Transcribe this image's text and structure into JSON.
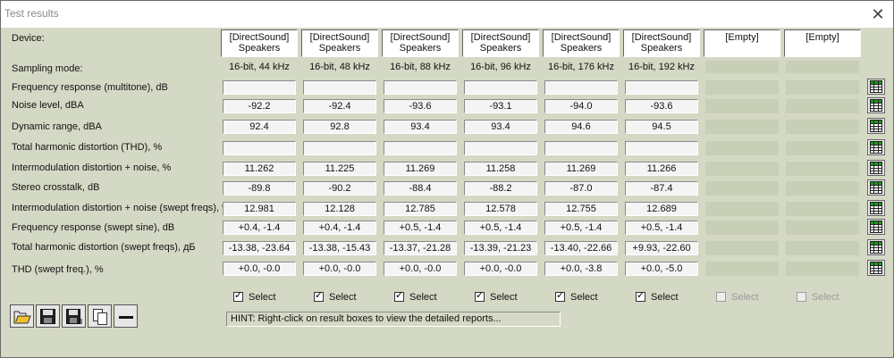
{
  "window": {
    "title": "Test results",
    "close_symbol": "✕"
  },
  "devices": [
    "[DirectSound]\nSpeakers",
    "[DirectSound]\nSpeakers",
    "[DirectSound]\nSpeakers",
    "[DirectSound]\nSpeakers",
    "[DirectSound]\nSpeakers",
    "[DirectSound]\nSpeakers",
    "[Empty]",
    "[Empty]"
  ],
  "labels": {
    "device": "Device:",
    "sampling": "Sampling mode:"
  },
  "sampling_modes": [
    "16-bit, 44 kHz",
    "16-bit, 48 kHz",
    "16-bit, 88 kHz",
    "16-bit, 96 kHz",
    "16-bit, 176 kHz",
    "16-bit, 192 kHz",
    "",
    ""
  ],
  "rows": [
    {
      "label": "Frequency response (multitone), dB",
      "values": [
        "",
        "",
        "",
        "",
        "",
        "",
        "",
        ""
      ]
    },
    {
      "label": "Noise level, dBA",
      "values": [
        "-92.2",
        "-92.4",
        "-93.6",
        "-93.1",
        "-94.0",
        "-93.6",
        "",
        ""
      ]
    },
    {
      "label": "Dynamic range, dBA",
      "values": [
        "92.4",
        "92.8",
        "93.4",
        "93.4",
        "94.6",
        "94.5",
        "",
        ""
      ]
    },
    {
      "label": "Total harmonic distortion (THD), %",
      "values": [
        "",
        "",
        "",
        "",
        "",
        "",
        "",
        ""
      ]
    },
    {
      "label": "Intermodulation distortion + noise, %",
      "values": [
        "11.262",
        "11.225",
        "11.269",
        "11.258",
        "11.269",
        "11.266",
        "",
        ""
      ]
    },
    {
      "label": "Stereo crosstalk, dB",
      "values": [
        "-89.8",
        "-90.2",
        "-88.4",
        "-88.2",
        "-87.0",
        "-87.4",
        "",
        ""
      ]
    },
    {
      "label": "Intermodulation distortion + noise (swept freqs), %",
      "values": [
        "12.981",
        "12.128",
        "12.785",
        "12.578",
        "12.755",
        "12.689",
        "",
        ""
      ]
    },
    {
      "label": "Frequency response (swept sine), dB",
      "values": [
        "+0.4, -1.4",
        "+0.4, -1.4",
        "+0.5, -1.4",
        "+0.5, -1.4",
        "+0.5, -1.4",
        "+0.5, -1.4",
        "",
        ""
      ]
    },
    {
      "label": "Total harmonic distortion (swept freqs), дБ",
      "values": [
        "-13.38, -23.64",
        "-13.38, -15.43",
        "-13.37, -21.28",
        "-13.39, -21.23",
        "-13.40, -22.66",
        "+9.93, -22.60",
        "",
        ""
      ]
    },
    {
      "label": "THD (swept freq.), %",
      "values": [
        "+0.0, -0.0",
        "+0.0, -0.0",
        "+0.0, -0.0",
        "+0.0, -0.0",
        "+0.0, -3.8",
        "+0.0, -5.0",
        "",
        ""
      ]
    }
  ],
  "select": {
    "label": "Select",
    "checked": [
      true,
      true,
      true,
      true,
      true,
      true,
      false,
      false
    ],
    "enabled": [
      true,
      true,
      true,
      true,
      true,
      true,
      false,
      false
    ]
  },
  "toolbar": [
    {
      "name": "open-folder-icon"
    },
    {
      "name": "save-icon"
    },
    {
      "name": "save-all-icon"
    },
    {
      "name": "copy-icon"
    },
    {
      "name": "remove-icon"
    }
  ],
  "hint": "HINT: Right-click on result boxes to view the detailed reports...",
  "colors": {
    "background": "#d4d9c5",
    "grid_icon": "#1a9a1a"
  }
}
